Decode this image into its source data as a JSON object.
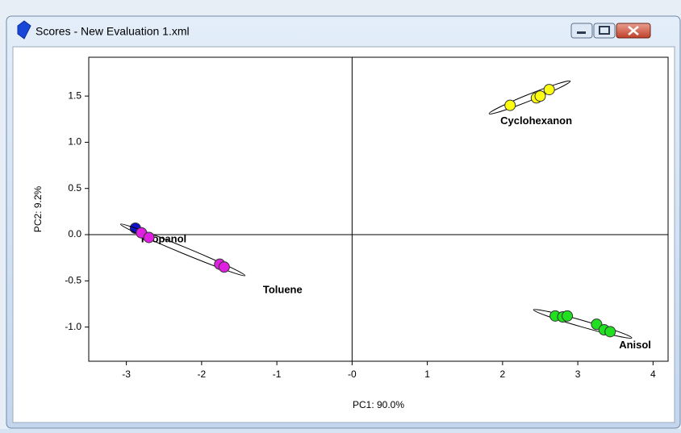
{
  "window": {
    "title": "Scores - New Evaluation 1.xml"
  },
  "chart_data": {
    "type": "scatter",
    "x_label": "PC1: 90.0%",
    "y_label": "PC2: 9.2%",
    "xlim": [
      -3.5,
      4.2
    ],
    "ylim": [
      -1.37,
      1.92
    ],
    "xticks": [
      -3,
      -2,
      -1,
      {
        "value": 0,
        "label": "-0"
      },
      1,
      2,
      3,
      4
    ],
    "yticks": [
      1.5,
      {
        "value": 1.0,
        "label": "1.0"
      },
      0.5,
      {
        "value": 0.0,
        "label": "0.0"
      },
      -0.5,
      {
        "value": -1.0,
        "label": "-1.0"
      }
    ],
    "series": [
      {
        "name": "Propanol",
        "color": "#1010c8",
        "x": [
          -2.88
        ],
        "values": [
          0.07
        ]
      },
      {
        "name": "Toluene",
        "color": "#e020e0",
        "x": [
          -2.8,
          -2.7,
          -1.76,
          -1.7
        ],
        "values": [
          0.02,
          -0.03,
          -0.32,
          -0.35
        ]
      },
      {
        "name": "Cyclohexanon",
        "color": "#ffff10",
        "x": [
          2.1,
          2.45,
          2.5,
          2.62
        ],
        "values": [
          1.4,
          1.48,
          1.5,
          1.57
        ]
      },
      {
        "name": "Anisol",
        "color": "#20e020",
        "x": [
          2.7,
          2.8,
          2.86,
          3.25,
          3.35,
          3.43
        ],
        "values": [
          -0.88,
          -0.89,
          -0.88,
          -0.97,
          -1.03,
          -1.05
        ]
      }
    ]
  }
}
